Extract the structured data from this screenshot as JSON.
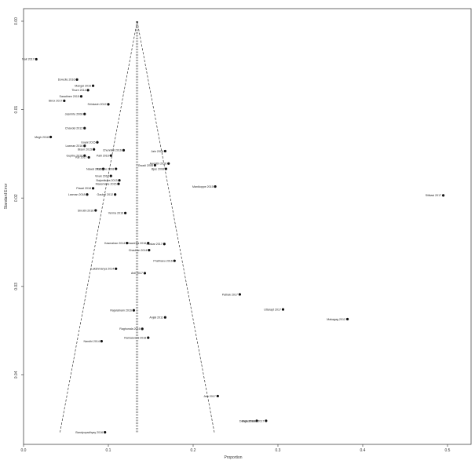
{
  "chart_data": {
    "type": "scatter",
    "title": "",
    "xlabel": "Proportion",
    "ylabel": "Standard Error",
    "xlim": [
      0.0,
      0.5
    ],
    "ylim": [
      0.0,
      0.046
    ],
    "y_reversed": true,
    "x_ticks": [
      {
        "v": 0.0,
        "label": "0.0"
      },
      {
        "v": 0.1,
        "label": "0.1"
      },
      {
        "v": 0.2,
        "label": "0.2"
      },
      {
        "v": 0.3,
        "label": "0.3"
      },
      {
        "v": 0.4,
        "label": "0.4"
      },
      {
        "v": 0.5,
        "label": "0.5"
      }
    ],
    "y_ticks": [
      {
        "v": 0.0,
        "label": "0.00"
      },
      {
        "v": 0.01,
        "label": "0.01"
      },
      {
        "v": 0.02,
        "label": "0.02"
      },
      {
        "v": 0.03,
        "label": "0.03"
      },
      {
        "v": 0.04,
        "label": "0.04"
      }
    ],
    "pooled_estimate": 0.134,
    "funnel": {
      "apex_se": 0.0,
      "base_se": 0.0465,
      "left_x": 0.043,
      "right_x": 0.225
    },
    "grid": false,
    "points": [
      {
        "label": "Nair 2017",
        "x": 0.015,
        "y": 0.0043
      },
      {
        "label": "Dowcite 2016",
        "x": 0.063,
        "y": 0.0066
      },
      {
        "label": "Mangal 2016",
        "x": 0.082,
        "y": 0.0073
      },
      {
        "label": "Thure 2014",
        "x": 0.076,
        "y": 0.0078
      },
      {
        "label": "Sasathree 2015",
        "x": 0.068,
        "y": 0.0085
      },
      {
        "label": "Birex 2017",
        "x": 0.048,
        "y": 0.009
      },
      {
        "label": "Sriinkarin 2012",
        "x": 0.1,
        "y": 0.0094
      },
      {
        "label": "Jasmirte 2008",
        "x": 0.072,
        "y": 0.0105
      },
      {
        "label": "Chandel 2012",
        "x": 0.072,
        "y": 0.0121
      },
      {
        "label": "Megh 2018",
        "x": 0.032,
        "y": 0.0131
      },
      {
        "label": "Goyal 2015",
        "x": 0.087,
        "y": 0.0137
      },
      {
        "label": "Laxman 2016",
        "x": 0.072,
        "y": 0.0141
      },
      {
        "label": "Bisen 2015",
        "x": 0.083,
        "y": 0.0145
      },
      {
        "label": "Chunnilal 2016",
        "x": 0.118,
        "y": 0.0146
      },
      {
        "label": "Jain 2016",
        "x": 0.167,
        "y": 0.0147
      },
      {
        "label": "Gupthe 2016",
        "x": 0.072,
        "y": 0.0152
      },
      {
        "label": "Kar 2017",
        "x": 0.077,
        "y": 0.0154
      },
      {
        "label": "Patil 2016",
        "x": 0.103,
        "y": 0.0152
      },
      {
        "label": "Awasthi 2016",
        "x": 0.171,
        "y": 0.0161
      },
      {
        "label": "Gwadi 2008",
        "x": 0.155,
        "y": 0.0163
      },
      {
        "label": "Bjas 2008",
        "x": 0.168,
        "y": 0.0167
      },
      {
        "label": "Nawal 2012",
        "x": 0.094,
        "y": 0.0167
      },
      {
        "label": "Kabigire 2008",
        "x": 0.109,
        "y": 0.0167
      },
      {
        "label": "Vivek 2012",
        "x": 0.103,
        "y": 0.0175
      },
      {
        "label": "Bajantkuba 2013",
        "x": 0.113,
        "y": 0.018
      },
      {
        "label": "Masemahe 2015",
        "x": 0.112,
        "y": 0.0184
      },
      {
        "label": "Manikoppe 2015",
        "x": 0.226,
        "y": 0.0187
      },
      {
        "label": "Pawal 2018",
        "x": 0.082,
        "y": 0.0189
      },
      {
        "label": "Sitikasi 2017",
        "x": 0.495,
        "y": 0.0197
      },
      {
        "label": "Laxman 2018",
        "x": 0.075,
        "y": 0.0196
      },
      {
        "label": "Gaubel 2012",
        "x": 0.108,
        "y": 0.0196
      },
      {
        "label": "Shruthi 2016",
        "x": 0.085,
        "y": 0.0214
      },
      {
        "label": "Verma 2016",
        "x": 0.12,
        "y": 0.0217
      },
      {
        "label": "Kasmahan 2014",
        "x": 0.122,
        "y": 0.0251
      },
      {
        "label": "Kaavinsa 2016",
        "x": 0.147,
        "y": 0.0251
      },
      {
        "label": "Sankar 2017",
        "x": 0.166,
        "y": 0.0252
      },
      {
        "label": "Chauhan 2014",
        "x": 0.148,
        "y": 0.0259
      },
      {
        "label": "Prabhasu 2016",
        "x": 0.178,
        "y": 0.0271
      },
      {
        "label": "Lakshmanya 2014",
        "x": 0.109,
        "y": 0.028
      },
      {
        "label": "Anil 2017",
        "x": 0.143,
        "y": 0.0285
      },
      {
        "label": "Pathak 2017",
        "x": 0.255,
        "y": 0.0309
      },
      {
        "label": "Uttarapt 2017",
        "x": 0.306,
        "y": 0.0326
      },
      {
        "label": "Makagag 2012",
        "x": 0.382,
        "y": 0.0337
      },
      {
        "label": "Rajaratnam 2016",
        "x": 0.13,
        "y": 0.0327
      },
      {
        "label": "Anjali 2011",
        "x": 0.167,
        "y": 0.0335
      },
      {
        "label": "Raghunala 2016",
        "x": 0.14,
        "y": 0.0348
      },
      {
        "label": "Nandhi 2014",
        "x": 0.092,
        "y": 0.0362
      },
      {
        "label": "Ramasvami 2018",
        "x": 0.147,
        "y": 0.0358
      },
      {
        "label": "Jain 2017",
        "x": 0.229,
        "y": 0.0424
      },
      {
        "label": "Dange 2016",
        "x": 0.275,
        "y": 0.0452
      },
      {
        "label": "Maheshwari 2017",
        "x": 0.286,
        "y": 0.0452
      },
      {
        "label": "Bandyopadhyay 2016",
        "x": 0.096,
        "y": 0.0465
      }
    ]
  }
}
